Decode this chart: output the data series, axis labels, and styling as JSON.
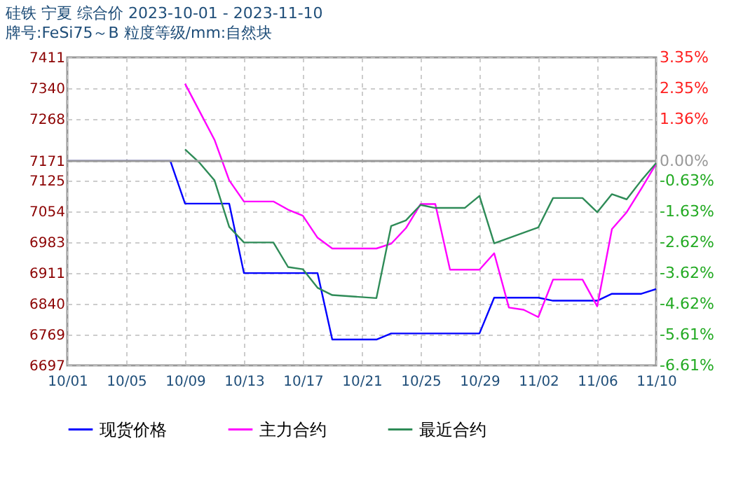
{
  "chart_data": {
    "type": "line",
    "title": "硅铁  宁夏  综合价  2023-10-01 - 2023-11-10",
    "subtitle": "牌号:FeSi75～B 粒度等级/mm:自然块",
    "xlim": [
      "2023-10-01",
      "2023-11-10"
    ],
    "xticks": [
      {
        "value": "2023-10-01",
        "label": "10/01"
      },
      {
        "value": "2023-10-05",
        "label": "10/05"
      },
      {
        "value": "2023-10-09",
        "label": "10/09"
      },
      {
        "value": "2023-10-13",
        "label": "10/13"
      },
      {
        "value": "2023-10-17",
        "label": "10/17"
      },
      {
        "value": "2023-10-21",
        "label": "10/21"
      },
      {
        "value": "2023-10-25",
        "label": "10/25"
      },
      {
        "value": "2023-10-29",
        "label": "10/29"
      },
      {
        "value": "2023-11-02",
        "label": "11/02"
      },
      {
        "value": "2023-11-06",
        "label": "11/06"
      },
      {
        "value": "2023-11-10",
        "label": "11/10"
      }
    ],
    "ylim": [
      6697,
      7411
    ],
    "yticks": [
      6697,
      6769,
      6840,
      6911,
      6983,
      7054,
      7125,
      7171,
      7268,
      7340,
      7411
    ],
    "y2lim": [
      -6.61,
      3.35
    ],
    "y2ticks": [
      {
        "value": -6.61,
        "label": "-6.61%"
      },
      {
        "value": -5.61,
        "label": "-5.61%"
      },
      {
        "value": -4.62,
        "label": "-4.62%"
      },
      {
        "value": -3.62,
        "label": "-3.62%"
      },
      {
        "value": -2.62,
        "label": "-2.62%"
      },
      {
        "value": -1.63,
        "label": "-1.63%"
      },
      {
        "value": -0.63,
        "label": "-0.63%"
      },
      {
        "value": 0,
        "label": "0.00%"
      },
      {
        "value": 1.36,
        "label": "1.36%"
      },
      {
        "value": 2.35,
        "label": "2.35%"
      },
      {
        "value": 3.35,
        "label": "3.35%"
      }
    ],
    "grid": true,
    "legend": "bottom",
    "marker": "none",
    "line_style": "solid",
    "ref_lines": [
      {
        "axis": "y2",
        "value": 0,
        "color": "#999999"
      }
    ],
    "series": [
      {
        "name": "现货价格",
        "color": "#0000ff",
        "x": [
          "2023-10-01",
          "2023-10-08",
          "2023-10-09",
          "2023-10-12",
          "2023-10-13",
          "2023-10-18",
          "2023-10-19",
          "2023-10-22",
          "2023-10-23",
          "2023-10-29",
          "2023-10-30",
          "2023-11-02",
          "2023-11-03",
          "2023-11-06",
          "2023-11-07",
          "2023-11-09",
          "2023-11-10"
        ],
        "values": [
          7171,
          7171,
          7072,
          7072,
          6911,
          6911,
          6757,
          6757,
          6771,
          6771,
          6854,
          6854,
          6847,
          6847,
          6863,
          6863,
          6874
        ]
      },
      {
        "name": "主力合约",
        "color": "#ff00ff",
        "x": [
          "2023-10-09",
          "2023-10-10",
          "2023-10-11",
          "2023-10-12",
          "2023-10-13",
          "2023-10-15",
          "2023-10-16",
          "2023-10-17",
          "2023-10-18",
          "2023-10-19",
          "2023-10-22",
          "2023-10-23",
          "2023-10-24",
          "2023-10-25",
          "2023-10-26",
          "2023-10-27",
          "2023-10-29",
          "2023-10-30",
          "2023-10-31",
          "2023-11-01",
          "2023-11-02",
          "2023-11-03",
          "2023-11-05",
          "2023-11-06",
          "2023-11-07",
          "2023-11-08",
          "2023-11-09",
          "2023-11-10"
        ],
        "values": [
          7350,
          7285,
          7220,
          7126,
          7077,
          7077,
          7058,
          7044,
          6993,
          6968,
          6968,
          6979,
          7015,
          7071,
          7071,
          6919,
          6919,
          6957,
          6831,
          6826,
          6809,
          6896,
          6896,
          6834,
          7013,
          7052,
          7107,
          7164
        ]
      },
      {
        "name": "最近合约",
        "color": "#2e8b57",
        "x": [
          "2023-10-09",
          "2023-10-10",
          "2023-10-11",
          "2023-10-12",
          "2023-10-13",
          "2023-10-15",
          "2023-10-16",
          "2023-10-17",
          "2023-10-18",
          "2023-10-19",
          "2023-10-22",
          "2023-10-23",
          "2023-10-24",
          "2023-10-25",
          "2023-10-26",
          "2023-10-28",
          "2023-10-29",
          "2023-10-30",
          "2023-11-02",
          "2023-11-03",
          "2023-11-05",
          "2023-11-06",
          "2023-11-07",
          "2023-11-08",
          "2023-11-09",
          "2023-11-10"
        ],
        "values": [
          7198,
          7166,
          7126,
          7018,
          6982,
          6982,
          6925,
          6920,
          6877,
          6860,
          6853,
          7020,
          7033,
          7069,
          7062,
          7062,
          7090,
          6980,
          7017,
          7085,
          7085,
          7052,
          7094,
          7082,
          7126,
          7166
        ]
      }
    ]
  }
}
